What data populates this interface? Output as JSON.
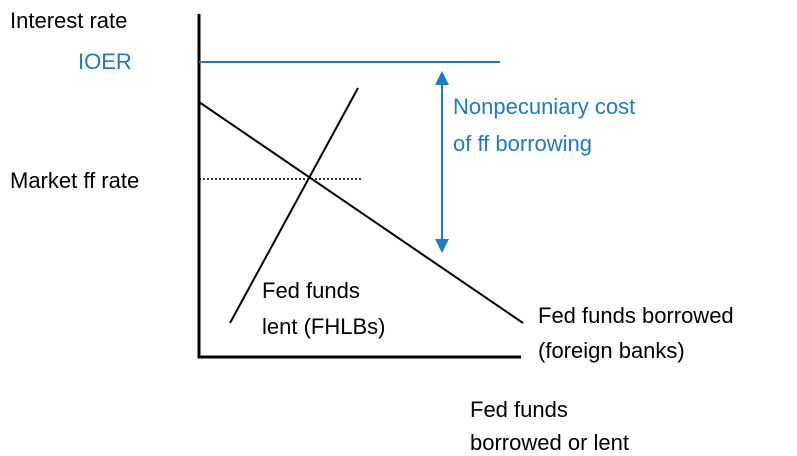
{
  "y_axis_label": "Interest rate",
  "rate_labels": {
    "ioer": "IOER",
    "market_ff_rate": "Market ff rate"
  },
  "annotation": [
    "Nonpecuniary cost",
    "of ff borrowing"
  ],
  "supply_label": [
    "Fed funds",
    "lent (FHLBs)"
  ],
  "demand_label": [
    "Fed funds borrowed",
    "(foreign banks)"
  ],
  "x_axis_label": [
    "Fed funds",
    "borrowed or lent"
  ]
}
